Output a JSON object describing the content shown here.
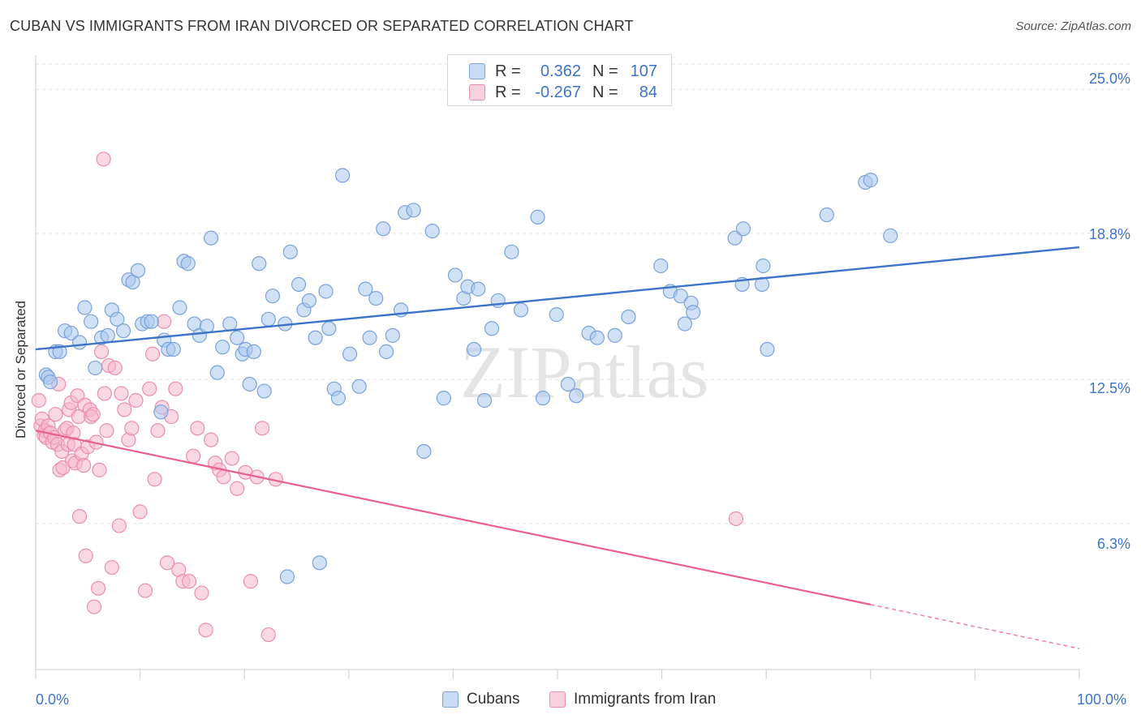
{
  "title": "CUBAN VS IMMIGRANTS FROM IRAN DIVORCED OR SEPARATED CORRELATION CHART",
  "source": "Source: ZipAtlas.com",
  "watermark": "ZIPatlas",
  "colors": {
    "blue": "#3d73c8",
    "blue_fill": "#a9c8ef",
    "pink": "#e8608e",
    "pink_fill": "#f6b8cc",
    "grid": "#e2e2e2"
  },
  "legend_top": {
    "rows": [
      {
        "r_label": "R =",
        "r_value": "0.362",
        "n_label": "N =",
        "n_value": "107"
      },
      {
        "r_label": "R =",
        "r_value": "-0.267",
        "n_label": "N =",
        "n_value": "84"
      }
    ]
  },
  "legend_bottom": {
    "items": [
      "Cubans",
      "Immigrants from Iran"
    ]
  },
  "chart_data": {
    "type": "scatter",
    "title": "CUBAN VS IMMIGRANTS FROM IRAN DIVORCED OR SEPARATED CORRELATION CHART",
    "xlabel": "",
    "ylabel": "Divorced or Separated",
    "xlim": [
      0,
      100
    ],
    "ylim": [
      0,
      26.1
    ],
    "x_tick_labels": [
      "0.0%",
      "100.0%"
    ],
    "y_ticks": [
      6.3,
      12.5,
      18.8,
      25.0
    ],
    "y_tick_labels": [
      "6.3%",
      "12.5%",
      "18.8%",
      "25.0%"
    ],
    "grid": true,
    "legend_position": "top-center",
    "series": [
      {
        "name": "Cubans",
        "color": "#3d73c8",
        "trend": {
          "x": [
            0,
            100
          ],
          "y": [
            13.8,
            18.2
          ]
        },
        "points": [
          [
            1.0,
            12.7
          ],
          [
            1.2,
            12.6
          ],
          [
            1.4,
            12.4
          ],
          [
            1.9,
            13.7
          ],
          [
            2.3,
            13.7
          ],
          [
            2.8,
            14.6
          ],
          [
            3.4,
            14.5
          ],
          [
            4.2,
            14.1
          ],
          [
            4.7,
            15.6
          ],
          [
            5.3,
            15.0
          ],
          [
            5.7,
            13.0
          ],
          [
            6.3,
            14.3
          ],
          [
            6.9,
            14.4
          ],
          [
            7.3,
            15.5
          ],
          [
            7.8,
            15.1
          ],
          [
            8.4,
            14.6
          ],
          [
            8.9,
            16.8
          ],
          [
            9.3,
            16.7
          ],
          [
            9.8,
            17.2
          ],
          [
            10.2,
            14.9
          ],
          [
            10.7,
            15.0
          ],
          [
            11.1,
            15.0
          ],
          [
            12.0,
            11.1
          ],
          [
            12.3,
            14.2
          ],
          [
            12.7,
            13.8
          ],
          [
            13.2,
            13.8
          ],
          [
            13.8,
            15.6
          ],
          [
            14.2,
            17.6
          ],
          [
            14.6,
            17.5
          ],
          [
            15.2,
            14.9
          ],
          [
            15.7,
            14.4
          ],
          [
            16.4,
            14.8
          ],
          [
            16.8,
            18.6
          ],
          [
            17.4,
            12.8
          ],
          [
            17.9,
            13.9
          ],
          [
            18.6,
            14.9
          ],
          [
            19.3,
            14.3
          ],
          [
            19.8,
            13.6
          ],
          [
            20.1,
            13.8
          ],
          [
            20.5,
            12.3
          ],
          [
            20.9,
            13.7
          ],
          [
            21.4,
            17.5
          ],
          [
            21.9,
            12.0
          ],
          [
            22.3,
            15.1
          ],
          [
            22.7,
            16.1
          ],
          [
            23.9,
            14.9
          ],
          [
            24.1,
            4.0
          ],
          [
            24.4,
            18.0
          ],
          [
            25.2,
            16.6
          ],
          [
            25.7,
            15.5
          ],
          [
            26.2,
            15.9
          ],
          [
            26.8,
            14.3
          ],
          [
            27.2,
            4.6
          ],
          [
            27.8,
            16.3
          ],
          [
            28.1,
            14.7
          ],
          [
            28.6,
            12.1
          ],
          [
            29.0,
            11.7
          ],
          [
            29.4,
            21.3
          ],
          [
            30.1,
            13.6
          ],
          [
            31.0,
            12.2
          ],
          [
            31.6,
            16.4
          ],
          [
            32.0,
            14.3
          ],
          [
            32.6,
            16.0
          ],
          [
            33.3,
            19.0
          ],
          [
            33.6,
            13.7
          ],
          [
            34.2,
            14.4
          ],
          [
            35.0,
            15.5
          ],
          [
            35.4,
            19.7
          ],
          [
            36.2,
            19.8
          ],
          [
            37.2,
            9.4
          ],
          [
            38.0,
            18.9
          ],
          [
            39.1,
            11.7
          ],
          [
            40.2,
            17.0
          ],
          [
            41.0,
            16.0
          ],
          [
            41.4,
            16.5
          ],
          [
            42.0,
            13.8
          ],
          [
            42.4,
            16.4
          ],
          [
            43.0,
            11.6
          ],
          [
            43.7,
            14.7
          ],
          [
            44.3,
            15.9
          ],
          [
            45.6,
            18.0
          ],
          [
            46.5,
            15.5
          ],
          [
            48.1,
            19.5
          ],
          [
            48.6,
            11.7
          ],
          [
            49.9,
            15.3
          ],
          [
            51.0,
            12.3
          ],
          [
            51.8,
            11.8
          ],
          [
            53.0,
            14.5
          ],
          [
            53.8,
            14.3
          ],
          [
            55.5,
            14.4
          ],
          [
            56.8,
            15.2
          ],
          [
            59.9,
            17.4
          ],
          [
            60.8,
            16.3
          ],
          [
            61.8,
            16.1
          ],
          [
            62.2,
            14.9
          ],
          [
            62.8,
            15.8
          ],
          [
            63.0,
            15.4
          ],
          [
            67.0,
            18.6
          ],
          [
            67.8,
            19.0
          ],
          [
            67.7,
            16.6
          ],
          [
            69.6,
            16.6
          ],
          [
            69.7,
            17.4
          ],
          [
            70.1,
            13.8
          ],
          [
            75.8,
            19.6
          ],
          [
            79.5,
            21.0
          ],
          [
            80.0,
            21.1
          ],
          [
            81.9,
            18.7
          ]
        ]
      },
      {
        "name": "Immigrants from Iran",
        "color": "#e8608e",
        "trend": {
          "x": [
            0,
            80
          ],
          "y": [
            10.3,
            2.8
          ]
        },
        "trend_dashed": {
          "x": [
            80,
            100
          ],
          "y": [
            2.8,
            0.9
          ]
        },
        "points": [
          [
            0.3,
            11.6
          ],
          [
            0.5,
            10.5
          ],
          [
            0.6,
            10.8
          ],
          [
            0.8,
            10.1
          ],
          [
            0.9,
            10.3
          ],
          [
            1.0,
            10.0
          ],
          [
            1.2,
            10.5
          ],
          [
            1.4,
            10.2
          ],
          [
            1.6,
            9.8
          ],
          [
            1.8,
            10.0
          ],
          [
            1.9,
            11.0
          ],
          [
            2.1,
            9.7
          ],
          [
            2.2,
            12.3
          ],
          [
            2.3,
            8.6
          ],
          [
            2.5,
            9.4
          ],
          [
            2.6,
            8.7
          ],
          [
            2.8,
            10.3
          ],
          [
            3.0,
            10.4
          ],
          [
            3.1,
            9.7
          ],
          [
            3.2,
            11.2
          ],
          [
            3.4,
            11.5
          ],
          [
            3.5,
            9.0
          ],
          [
            3.6,
            10.2
          ],
          [
            3.7,
            9.7
          ],
          [
            3.8,
            8.9
          ],
          [
            4.0,
            11.8
          ],
          [
            4.1,
            10.9
          ],
          [
            4.2,
            6.6
          ],
          [
            4.4,
            9.3
          ],
          [
            4.6,
            8.8
          ],
          [
            4.7,
            11.4
          ],
          [
            4.8,
            4.9
          ],
          [
            5.0,
            9.6
          ],
          [
            5.2,
            11.2
          ],
          [
            5.3,
            10.9
          ],
          [
            5.5,
            11.0
          ],
          [
            5.6,
            2.7
          ],
          [
            5.8,
            9.8
          ],
          [
            6.0,
            3.5
          ],
          [
            6.1,
            8.6
          ],
          [
            6.3,
            13.7
          ],
          [
            6.5,
            22.0
          ],
          [
            6.6,
            11.9
          ],
          [
            6.8,
            10.3
          ],
          [
            7.0,
            13.1
          ],
          [
            7.3,
            4.4
          ],
          [
            7.6,
            13.0
          ],
          [
            8.0,
            6.2
          ],
          [
            8.2,
            11.9
          ],
          [
            8.5,
            11.2
          ],
          [
            8.9,
            9.9
          ],
          [
            9.2,
            10.4
          ],
          [
            9.6,
            11.6
          ],
          [
            10.0,
            6.8
          ],
          [
            10.5,
            3.4
          ],
          [
            10.9,
            12.1
          ],
          [
            11.2,
            13.6
          ],
          [
            11.4,
            8.2
          ],
          [
            11.7,
            10.3
          ],
          [
            12.1,
            11.3
          ],
          [
            12.6,
            4.6
          ],
          [
            13.0,
            10.9
          ],
          [
            13.4,
            12.1
          ],
          [
            13.7,
            4.3
          ],
          [
            14.1,
            3.8
          ],
          [
            14.7,
            3.8
          ],
          [
            15.1,
            9.2
          ],
          [
            15.5,
            10.4
          ],
          [
            15.9,
            3.3
          ],
          [
            16.3,
            1.7
          ],
          [
            16.8,
            9.9
          ],
          [
            17.2,
            8.9
          ],
          [
            17.6,
            8.6
          ],
          [
            18.0,
            8.3
          ],
          [
            18.8,
            9.1
          ],
          [
            19.3,
            7.8
          ],
          [
            20.1,
            8.5
          ],
          [
            20.6,
            3.8
          ],
          [
            21.2,
            8.3
          ],
          [
            21.7,
            10.4
          ],
          [
            22.3,
            1.5
          ],
          [
            23.0,
            8.2
          ],
          [
            67.1,
            6.5
          ],
          [
            12.3,
            15.0
          ]
        ]
      }
    ]
  }
}
